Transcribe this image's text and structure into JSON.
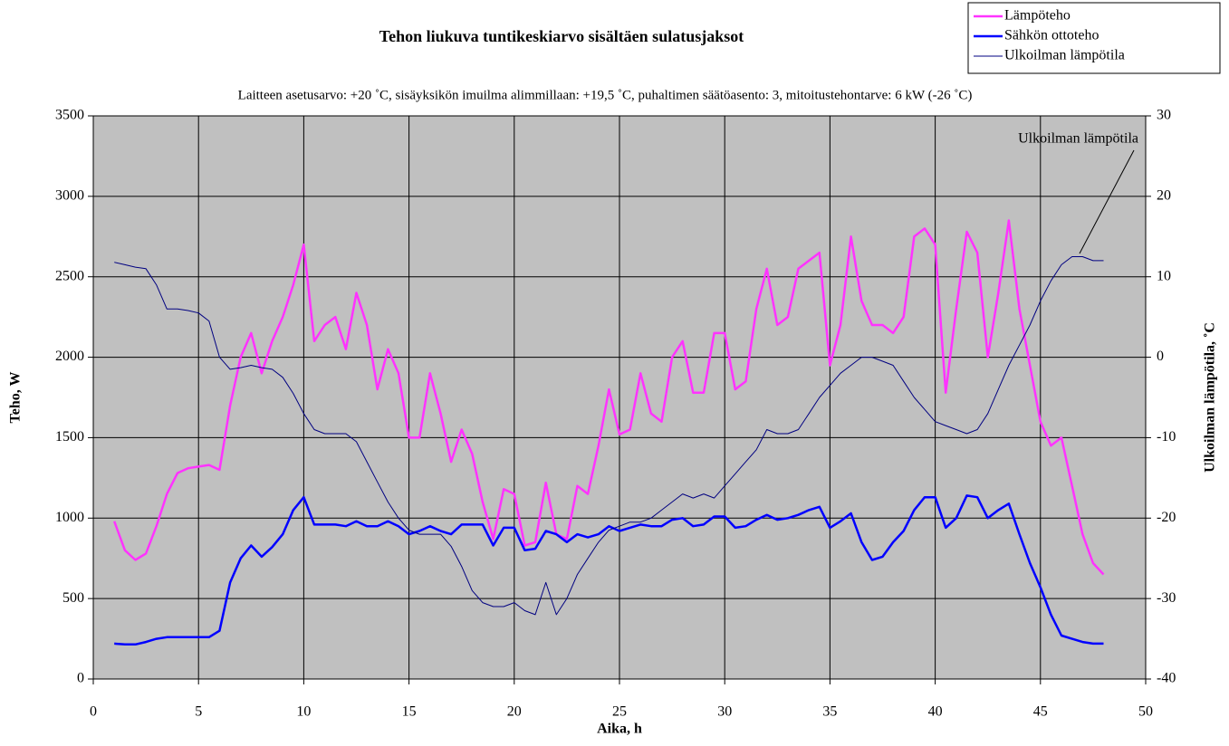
{
  "chart_data": {
    "type": "line",
    "title": "Tehon liukuva tuntikeskiarvo sisältäen sulatusjaksot",
    "subtitle": "Laitteen asetusarvo: +20 ˚C, sisäyksikön imuilma alimmillaan: +19,5 ˚C, puhaltimen säätöasento: 3, mitoitustehontarve: 6 kW (-26 ˚C)",
    "x_label": "Aika, h",
    "y_label": "Teho, W",
    "y2_label": "Ulkoilman lämpötila, ˚C",
    "annotation": "Ulkoilman lämpötila",
    "legend": "upper right",
    "grid": true,
    "background": "#c0c0c0",
    "xlim": [
      0,
      50
    ],
    "xticks": [
      0,
      5,
      10,
      15,
      20,
      25,
      30,
      35,
      40,
      45,
      50
    ],
    "ylim": [
      0,
      3500
    ],
    "yticks": [
      0,
      500,
      1000,
      1500,
      2000,
      2500,
      3000,
      3500
    ],
    "y2lim": [
      -40,
      30
    ],
    "y2ticks": [
      -40,
      -30,
      -20,
      -10,
      0,
      10,
      20,
      30
    ],
    "x": [
      1,
      1.5,
      2,
      2.5,
      3,
      3.5,
      4,
      4.5,
      5,
      5.5,
      6,
      6.5,
      7,
      7.5,
      8,
      8.5,
      9,
      9.5,
      10,
      10.5,
      11,
      11.5,
      12,
      12.5,
      13,
      13.5,
      14,
      14.5,
      15,
      15.5,
      16,
      16.5,
      17,
      17.5,
      18,
      18.5,
      19,
      19.5,
      20,
      20.5,
      21,
      21.5,
      22,
      22.5,
      23,
      23.5,
      24,
      24.5,
      25,
      25.5,
      26,
      26.5,
      27,
      27.5,
      28,
      28.5,
      29,
      29.5,
      30,
      30.5,
      31,
      31.5,
      32,
      32.5,
      33,
      33.5,
      34,
      34.5,
      35,
      35.5,
      36,
      36.5,
      37,
      37.5,
      38,
      38.5,
      39,
      39.5,
      40,
      40.5,
      41,
      41.5,
      42,
      42.5,
      43,
      43.5,
      44,
      44.5,
      45,
      45.5,
      46,
      46.5,
      47,
      47.5,
      48
    ],
    "series": [
      {
        "name": "Lämpöteho",
        "color": "#ff33ff",
        "width": 2.5,
        "values": [
          980,
          800,
          740,
          780,
          950,
          1150,
          1280,
          1310,
          1320,
          1330,
          1300,
          1700,
          2000,
          2150,
          1900,
          2100,
          2250,
          2450,
          2700,
          2100,
          2200,
          2250,
          2050,
          2400,
          2200,
          1800,
          2050,
          1900,
          1500,
          1500,
          1900,
          1650,
          1350,
          1550,
          1400,
          1100,
          870,
          1180,
          1150,
          830,
          850,
          1220,
          900,
          870,
          1200,
          1150,
          1450,
          1800,
          1520,
          1550,
          1900,
          1650,
          1600,
          2000,
          2100,
          1780,
          1780,
          2150,
          2150,
          1800,
          1850,
          2300,
          2550,
          2200,
          2250,
          2550,
          2600,
          2650,
          1950,
          2200,
          2750,
          2350,
          2200,
          2200,
          2150,
          2250,
          2750,
          2800,
          2700,
          1780,
          2300,
          2780,
          2650,
          2000,
          2400,
          2850,
          2300,
          1950,
          1600,
          1450,
          1500,
          1200,
          900,
          720,
          650
        ]
      },
      {
        "name": "Sähkön ottoteho",
        "color": "#0000ff",
        "width": 2.5,
        "values": [
          220,
          215,
          215,
          230,
          250,
          260,
          260,
          260,
          260,
          260,
          300,
          600,
          750,
          830,
          760,
          820,
          900,
          1050,
          1130,
          960,
          960,
          960,
          950,
          980,
          950,
          950,
          980,
          950,
          900,
          920,
          950,
          920,
          900,
          960,
          960,
          960,
          830,
          940,
          940,
          800,
          810,
          920,
          900,
          850,
          900,
          880,
          900,
          950,
          920,
          940,
          960,
          950,
          950,
          990,
          1000,
          950,
          960,
          1010,
          1010,
          940,
          950,
          990,
          1020,
          990,
          1000,
          1020,
          1050,
          1070,
          940,
          980,
          1030,
          850,
          740,
          760,
          850,
          920,
          1050,
          1130,
          1130,
          940,
          1000,
          1140,
          1130,
          1000,
          1050,
          1090,
          900,
          720,
          570,
          400,
          270,
          250,
          230,
          220,
          220
        ]
      },
      {
        "name": "Ulkoilman lämpötila",
        "color": "#000080",
        "width": 1,
        "axis": "y2",
        "values": [
          11.8,
          11.5,
          11.2,
          11,
          9,
          6,
          6,
          5.8,
          5.5,
          4.5,
          0,
          -1.5,
          -1.3,
          -1,
          -1.3,
          -1.5,
          -2.5,
          -4.5,
          -7,
          -9,
          -9.5,
          -9.5,
          -9.5,
          -10.5,
          -13,
          -15.5,
          -18,
          -20,
          -21.5,
          -22,
          -22,
          -22,
          -23.5,
          -26,
          -29,
          -30.5,
          -31,
          -31,
          -30.5,
          -31.5,
          -32,
          -28,
          -32,
          -30,
          -27,
          -25,
          -23,
          -21.5,
          -21,
          -20.5,
          -20.5,
          -20,
          -19,
          -18,
          -17,
          -17.5,
          -17,
          -17.5,
          -16,
          -14.5,
          -13,
          -11.5,
          -9,
          -9.5,
          -9.5,
          -9,
          -7,
          -5,
          -3.5,
          -2,
          -1,
          0,
          0,
          -0.5,
          -1,
          -3,
          -5,
          -6.5,
          -8,
          -8.5,
          -9,
          -9.5,
          -9,
          -7,
          -4,
          -1,
          1.5,
          4,
          7,
          9.5,
          11.5,
          12.5,
          12.5,
          12,
          12
        ]
      }
    ]
  }
}
